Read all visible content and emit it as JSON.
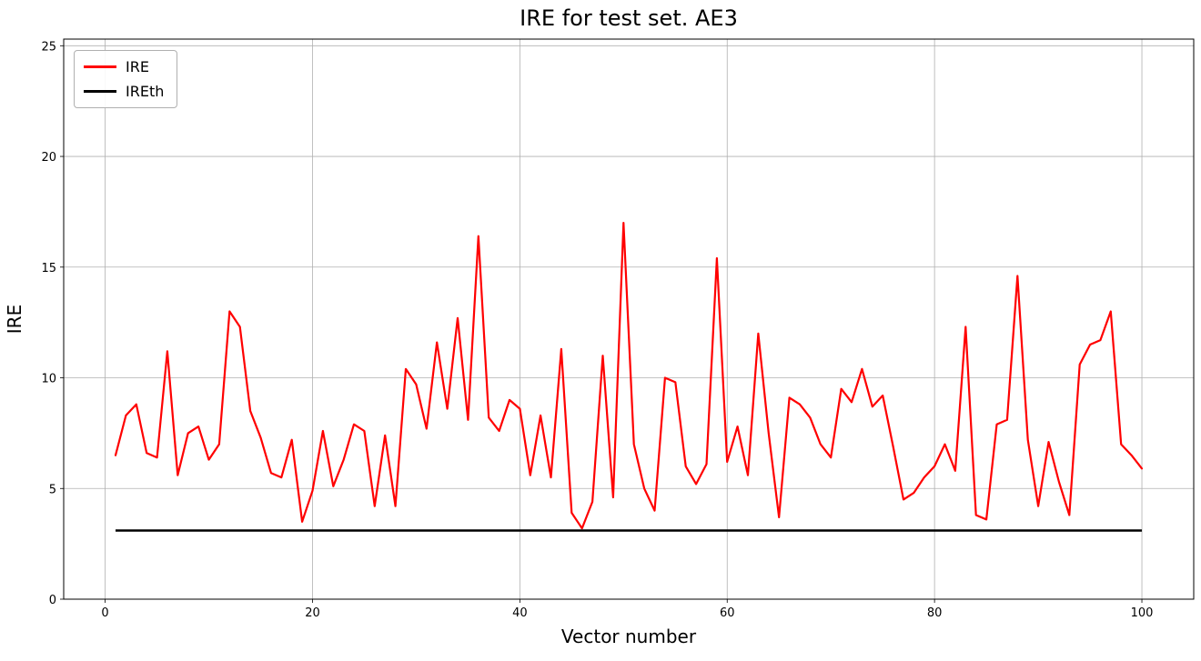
{
  "chart_data": {
    "type": "line",
    "title": "IRE for test set. AE3",
    "xlabel": "Vector number",
    "ylabel": "IRE",
    "xlim": [
      -4,
      105
    ],
    "ylim": [
      0,
      25.3
    ],
    "xticks": [
      0,
      20,
      40,
      60,
      80,
      100
    ],
    "yticks": [
      0,
      5,
      10,
      15,
      20,
      25
    ],
    "grid": true,
    "grid_color": "#b0b0b0",
    "legend_position": "upper-left",
    "x": [
      1,
      2,
      3,
      4,
      5,
      6,
      7,
      8,
      9,
      10,
      11,
      12,
      13,
      14,
      15,
      16,
      17,
      18,
      19,
      20,
      21,
      22,
      23,
      24,
      25,
      26,
      27,
      28,
      29,
      30,
      31,
      32,
      33,
      34,
      35,
      36,
      37,
      38,
      39,
      40,
      41,
      42,
      43,
      44,
      45,
      46,
      47,
      48,
      49,
      50,
      51,
      52,
      53,
      54,
      55,
      56,
      57,
      58,
      59,
      60,
      61,
      62,
      63,
      64,
      65,
      66,
      67,
      68,
      69,
      70,
      71,
      72,
      73,
      74,
      75,
      76,
      77,
      78,
      79,
      80,
      81,
      82,
      83,
      84,
      85,
      86,
      87,
      88,
      89,
      90,
      91,
      92,
      93,
      94,
      95,
      96,
      97,
      98,
      99,
      100
    ],
    "series": [
      {
        "name": "IRE",
        "color": "#ff0000",
        "values": [
          6.5,
          8.3,
          8.8,
          6.6,
          6.4,
          11.2,
          5.6,
          7.5,
          7.8,
          6.3,
          7.0,
          13.0,
          12.3,
          8.5,
          7.3,
          5.7,
          5.5,
          7.2,
          3.5,
          4.9,
          7.6,
          5.1,
          6.3,
          7.9,
          7.6,
          4.2,
          7.4,
          4.2,
          10.4,
          9.7,
          7.7,
          11.6,
          8.6,
          12.7,
          8.1,
          16.4,
          8.2,
          7.6,
          9.0,
          8.6,
          5.6,
          8.3,
          5.5,
          11.3,
          3.9,
          3.2,
          4.4,
          11.0,
          4.6,
          17.0,
          7.0,
          5.0,
          4.0,
          10.0,
          9.8,
          6.0,
          5.2,
          6.1,
          15.4,
          6.2,
          7.8,
          5.6,
          12.0,
          7.5,
          3.7,
          9.1,
          8.8,
          8.2,
          7.0,
          6.4,
          9.5,
          8.9,
          10.4,
          8.7,
          9.2,
          6.9,
          4.5,
          4.8,
          5.5,
          6.0,
          7.0,
          5.8,
          12.3,
          3.8,
          3.6,
          7.9,
          8.1,
          14.6,
          7.2,
          4.2,
          7.1,
          5.3,
          3.8,
          10.6,
          11.5,
          11.7,
          13.0,
          7.0,
          6.5,
          5.9
        ]
      },
      {
        "name": "IREth",
        "color": "#000000",
        "constant": 3.1
      }
    ]
  }
}
